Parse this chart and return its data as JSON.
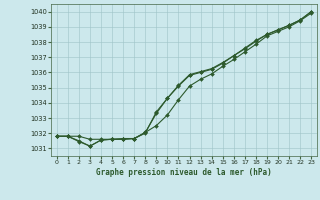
{
  "title": "Graphe pression niveau de la mer (hPa)",
  "background_color": "#cce8ec",
  "grid_color": "#9fc4c8",
  "line_color": "#2d5a2d",
  "xlim": [
    -0.5,
    23.5
  ],
  "ylim": [
    1030.5,
    1040.5
  ],
  "xticks": [
    0,
    1,
    2,
    3,
    4,
    5,
    6,
    7,
    8,
    9,
    10,
    11,
    12,
    13,
    14,
    15,
    16,
    17,
    18,
    19,
    20,
    21,
    22,
    23
  ],
  "yticks": [
    1031,
    1032,
    1033,
    1034,
    1035,
    1036,
    1037,
    1038,
    1039,
    1040
  ],
  "series1": [
    1031.8,
    1031.8,
    1031.8,
    1031.6,
    1031.6,
    1031.6,
    1031.65,
    1031.65,
    1032.0,
    1033.4,
    1034.3,
    1035.1,
    1035.8,
    1036.0,
    1036.2,
    1036.6,
    1037.1,
    1037.6,
    1038.1,
    1038.5,
    1038.8,
    1039.1,
    1039.45,
    1040.0
  ],
  "series2": [
    1031.8,
    1031.8,
    1031.5,
    1031.15,
    1031.55,
    1031.6,
    1031.6,
    1031.65,
    1032.05,
    1032.5,
    1033.2,
    1034.2,
    1035.1,
    1035.55,
    1035.9,
    1036.4,
    1036.85,
    1037.35,
    1037.85,
    1038.4,
    1038.7,
    1039.0,
    1039.4,
    1039.9
  ],
  "series3": [
    1031.8,
    1031.8,
    1031.45,
    1031.15,
    1031.55,
    1031.6,
    1031.6,
    1031.65,
    1032.05,
    1033.3,
    1034.3,
    1035.15,
    1035.85,
    1036.05,
    1036.25,
    1036.65,
    1037.1,
    1037.55,
    1038.05,
    1038.5,
    1038.8,
    1039.1,
    1039.45,
    1040.0
  ]
}
